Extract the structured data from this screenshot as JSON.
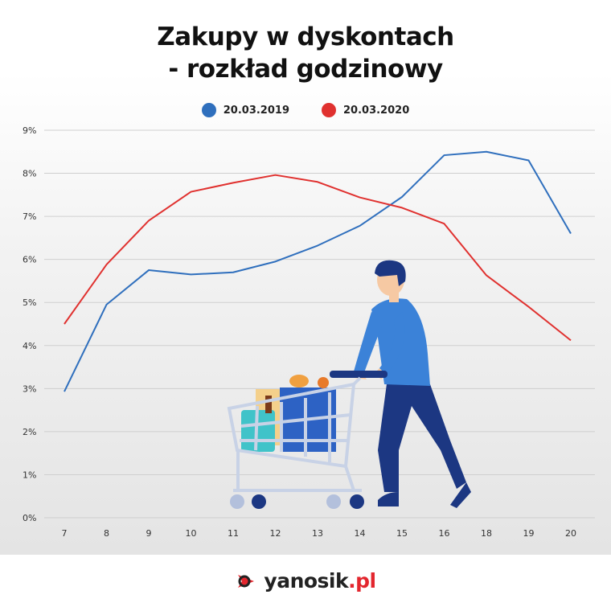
{
  "chart_data": {
    "type": "line",
    "title": "Zakupy w dyskontach\n- rozkład godzinowy",
    "title_lines": [
      "Zakupy w dyskontach",
      "- rozkład godzinowy"
    ],
    "categories": [
      "7",
      "8",
      "9",
      "10",
      "11",
      "12",
      "13",
      "14",
      "15",
      "16",
      "18",
      "19",
      "20"
    ],
    "y_ticks": [
      "0%",
      "1%",
      "2%",
      "3%",
      "4%",
      "5%",
      "6%",
      "7%",
      "8%",
      "9%"
    ],
    "ylim": [
      0,
      9
    ],
    "grid": true,
    "legend_position": "top-center",
    "series": [
      {
        "name": "20.03.2019",
        "color": "#2f6fbd",
        "values": [
          2.93,
          4.95,
          5.75,
          5.65,
          5.7,
          5.95,
          6.32,
          6.78,
          7.45,
          8.42,
          8.5,
          8.3,
          6.6
        ]
      },
      {
        "name": "20.03.2020",
        "color": "#e0312f",
        "values": [
          4.5,
          5.88,
          6.9,
          7.57,
          7.78,
          7.96,
          7.8,
          7.44,
          7.2,
          6.83,
          5.63,
          4.9,
          4.12
        ]
      }
    ]
  },
  "brand": {
    "name": "yanosik",
    "domain": ".pl",
    "icon": "yanosik-logo-icon"
  },
  "illustration": {
    "icon": "shopping-cart-man-illustration"
  }
}
